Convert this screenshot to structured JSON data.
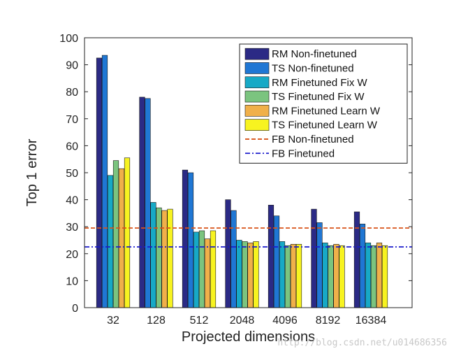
{
  "chart_data": {
    "type": "bar",
    "title": "",
    "xlabel": "Projected dimensions",
    "ylabel": "Top 1 error",
    "ylim": [
      0,
      100
    ],
    "yticks": [
      0,
      10,
      20,
      30,
      40,
      50,
      60,
      70,
      80,
      90,
      100
    ],
    "categories": [
      "32",
      "128",
      "512",
      "2048",
      "4096",
      "8192",
      "16384"
    ],
    "series": [
      {
        "name": "RM Non-finetuned",
        "color": "#2b2a85",
        "values": [
          92.5,
          78,
          51,
          40,
          38,
          36.5,
          35.5
        ]
      },
      {
        "name": "TS Non-finetuned",
        "color": "#1f77d4",
        "values": [
          93.5,
          77.5,
          50,
          36,
          34,
          31.5,
          31
        ]
      },
      {
        "name": "RM Finetuned Fix W",
        "color": "#17a9c6",
        "values": [
          49,
          39,
          28,
          25,
          24.5,
          24,
          24
        ]
      },
      {
        "name": "TS Finetuned Fix W",
        "color": "#7bc47f",
        "values": [
          54.5,
          37,
          28.5,
          24.5,
          23,
          23,
          23
        ]
      },
      {
        "name": "RM Finetuned Learn W",
        "color": "#f0b04a",
        "values": [
          51.5,
          36,
          25.5,
          24,
          23.5,
          23.5,
          24
        ]
      },
      {
        "name": "TS Finetuned Learn W",
        "color": "#f7f320",
        "values": [
          55.5,
          36.5,
          28.5,
          24.5,
          23.5,
          23,
          23
        ]
      }
    ],
    "reference_lines": [
      {
        "name": "FB Non-finetuned",
        "color": "#d95319",
        "style": "dashed",
        "value": 29.5
      },
      {
        "name": "FB Finetuned",
        "color": "#1a1acc",
        "style": "dashdot",
        "value": 22.5
      }
    ],
    "legend_position": "top-right"
  },
  "watermark": "http://blog.csdn.net/u014686356"
}
